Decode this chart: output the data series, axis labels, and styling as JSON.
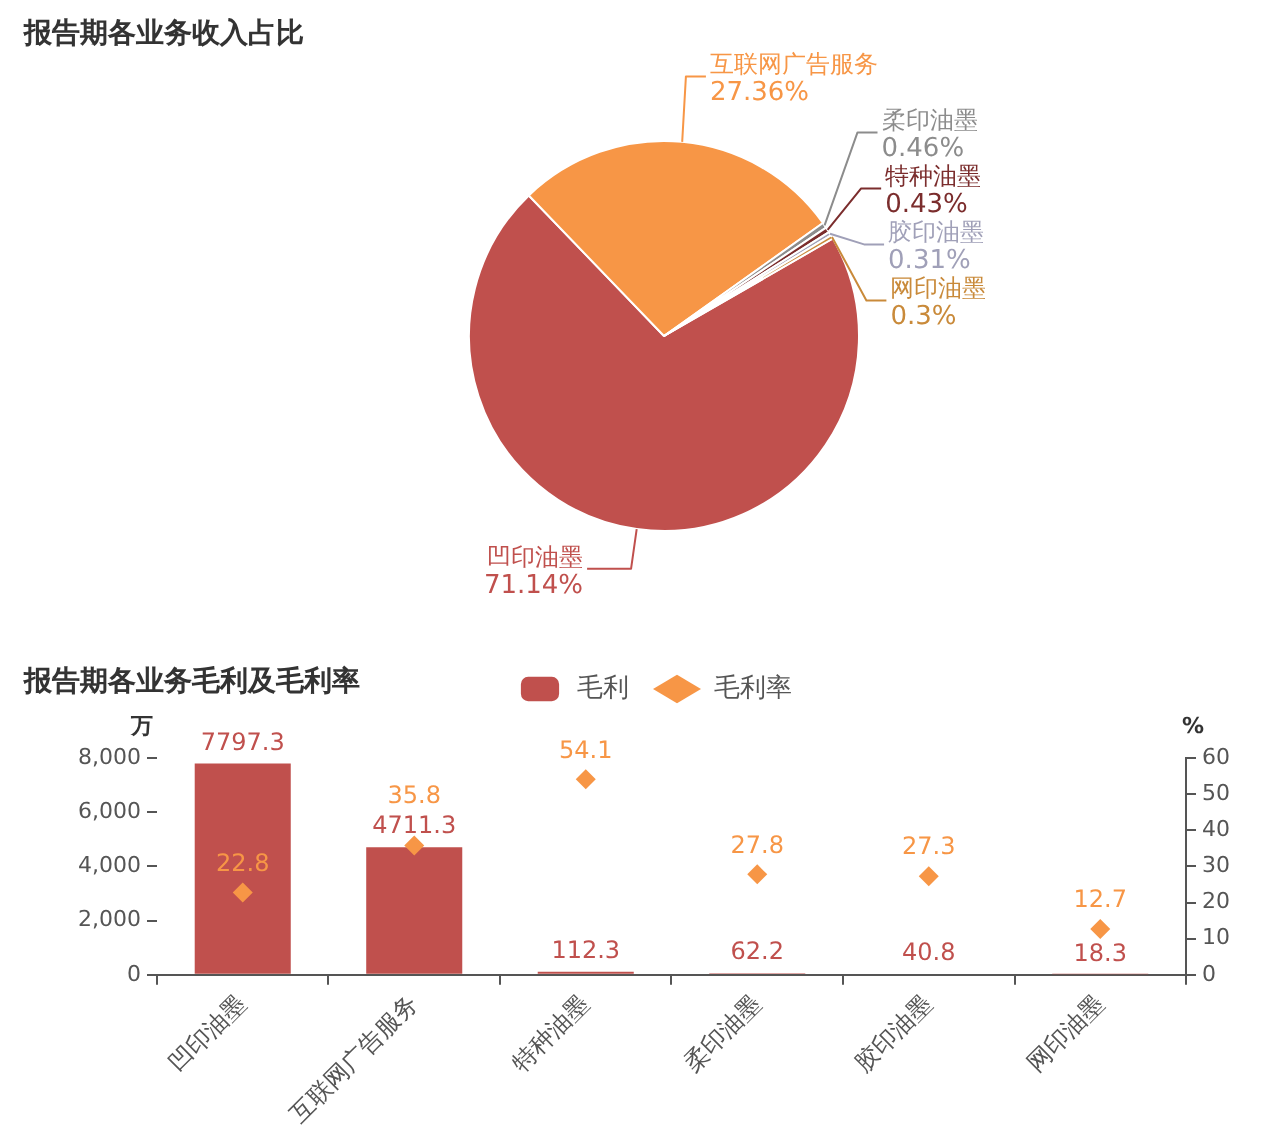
{
  "chart_data": [
    {
      "type": "pie",
      "title": "报告期各业务收入占比",
      "categories": [
        "凹印油墨",
        "互联网广告服务",
        "柔印油墨",
        "特种油墨",
        "胶印油墨",
        "网印油墨"
      ],
      "values": [
        71.14,
        27.36,
        0.46,
        0.43,
        0.31,
        0.3
      ],
      "colors": [
        "#c0504d",
        "#f79646",
        "#8c8c8c",
        "#7b2d2d",
        "#a0a0b8",
        "#c98a3a"
      ],
      "value_labels": [
        "71.14%",
        "27.36%",
        "0.46%",
        "0.43%",
        "0.31%",
        "0.3%"
      ]
    },
    {
      "type": "bar",
      "title": "报告期各业务毛利及毛利率",
      "categories": [
        "凹印油墨",
        "互联网广告服务",
        "特种油墨",
        "柔印油墨",
        "胶印油墨",
        "网印油墨"
      ],
      "series": [
        {
          "name": "毛利",
          "type": "bar",
          "color": "#c0504d",
          "values": [
            7797.3,
            4711.3,
            112.3,
            62.2,
            40.8,
            18.3
          ]
        },
        {
          "name": "毛利率",
          "type": "scatter",
          "axis": "y2",
          "marker": "diamond",
          "color": "#f79646",
          "x": [
            "凹印油墨",
            "互联网广告服务",
            "特种油墨",
            "柔印油墨",
            "胶印油墨",
            "网印油墨"
          ],
          "values": [
            22.8,
            35.8,
            54.1,
            27.8,
            27.3,
            12.7
          ]
        }
      ],
      "ylabel": "万",
      "y2label": "%",
      "ylim": [
        0,
        8000
      ],
      "yticks": [
        0,
        {
          "value": 2000,
          "label": "2,000"
        },
        {
          "value": 4000,
          "label": "4,000"
        },
        {
          "value": 6000,
          "label": "6,000"
        },
        {
          "value": 8000,
          "label": "8,000"
        }
      ],
      "y2lim": [
        0,
        60
      ],
      "y2ticks": [
        0,
        10,
        20,
        30,
        40,
        50,
        60
      ],
      "data_labels": true,
      "legend": "top",
      "grid": false
    }
  ]
}
